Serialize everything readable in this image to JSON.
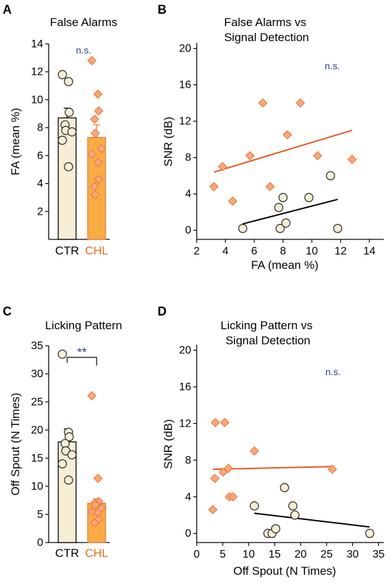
{
  "colors": {
    "ctr_fill": "#f5efd6",
    "chl_fill": "#f9ac44",
    "chl_marker_fill": "#f9a77d",
    "chl_marker_stroke": "#ef7d3a",
    "chl_text": "#ef6a1a",
    "ctr_line": "#000000",
    "chl_line": "#e8541d",
    "sig_text": "#2a3f8f"
  },
  "chart_data": [
    {
      "panel": "A",
      "type": "bar",
      "title": "False Alarms",
      "ylabel": "FA (mean %)",
      "ylim": [
        0,
        14
      ],
      "yticks": [
        2,
        4,
        6,
        8,
        10,
        12,
        14
      ],
      "categories": [
        "CTR",
        "CHL"
      ],
      "means": [
        8.7,
        7.3
      ],
      "sem": [
        0.7,
        0.9
      ],
      "points": [
        [
          11.8,
          11.3,
          9.1,
          8.2,
          7.8,
          7.7,
          7.1,
          5.2
        ],
        [
          12.8,
          10.4,
          9.2,
          8.6,
          7.6,
          6.5,
          6.1,
          5.5,
          4.3,
          3.8,
          3.2
        ]
      ],
      "significance": "n.s."
    },
    {
      "panel": "B",
      "type": "scatter",
      "title": [
        "False Alarms vs",
        "Signal Detection"
      ],
      "xlabel": "FA (mean %)",
      "ylabel": "SNR (dB)",
      "xlim": [
        2,
        15
      ],
      "ylim": [
        -1,
        20.5
      ],
      "xticks": [
        2,
        4,
        6,
        8,
        10,
        12,
        14
      ],
      "yticks": [
        0,
        4,
        8,
        12,
        16,
        20
      ],
      "series": [
        {
          "group": "CHL",
          "marker": "diamond",
          "x": [
            3.2,
            3.8,
            4.5,
            5.7,
            6.6,
            7.1,
            8.3,
            9.2,
            10.4,
            12.8
          ],
          "y": [
            4.8,
            7.0,
            3.2,
            8.2,
            14.0,
            4.8,
            10.5,
            14.0,
            8.2,
            7.8
          ],
          "fit": [
            [
              3.2,
              6.4
            ],
            [
              12.8,
              11.0
            ]
          ]
        },
        {
          "group": "CTR",
          "marker": "circle",
          "x": [
            5.2,
            7.7,
            7.8,
            8.0,
            8.2,
            9.8,
            11.3,
            11.8
          ],
          "y": [
            0.2,
            2.5,
            0.2,
            3.6,
            0.8,
            3.6,
            6.0,
            0.2
          ],
          "fit": [
            [
              5.2,
              0.7
            ],
            [
              11.8,
              3.4
            ]
          ]
        }
      ],
      "significance": "n.s."
    },
    {
      "panel": "C",
      "type": "bar",
      "title": "Licking Pattern",
      "ylabel": "Off Spout (N Times)",
      "ylim": [
        0,
        35
      ],
      "yticks": [
        0,
        5,
        10,
        15,
        20,
        25,
        30,
        35
      ],
      "categories": [
        "CTR",
        "CHL"
      ],
      "means": [
        17.9,
        7.0
      ],
      "sem": [
        2.3,
        0.8
      ],
      "points": [
        [
          33.5,
          19.6,
          18.8,
          17.6,
          16.3,
          15.6,
          14.0,
          11.1
        ],
        [
          26.1,
          11.4,
          7.3,
          7.0,
          6.7,
          6.1,
          5.5,
          5.3,
          4.1,
          3.5
        ]
      ],
      "significance": "**"
    },
    {
      "panel": "D",
      "type": "scatter",
      "title": [
        "Licking Pattern vs",
        "Signal Detection"
      ],
      "xlabel": "Off Spout (N Times)",
      "ylabel": "SNR (dB)",
      "xlim": [
        0,
        36
      ],
      "ylim": [
        -1,
        20.5
      ],
      "xticks": [
        0,
        5,
        10,
        15,
        20,
        25,
        30,
        35
      ],
      "yticks": [
        0,
        4,
        8,
        12,
        16,
        20
      ],
      "series": [
        {
          "group": "CHL",
          "marker": "diamond",
          "x": [
            3.1,
            3.5,
            3.6,
            5.1,
            5.4,
            6.1,
            6.3,
            7.0,
            11.1,
            26.1
          ],
          "y": [
            2.6,
            6.0,
            12.1,
            6.7,
            12.1,
            7.1,
            4.0,
            4.0,
            9.0,
            7.0
          ],
          "fit": [
            [
              3.1,
              7.0
            ],
            [
              26.1,
              7.3
            ]
          ]
        },
        {
          "group": "CTR",
          "marker": "circle",
          "x": [
            11.1,
            13.7,
            14.5,
            15.2,
            16.9,
            18.5,
            18.9,
            33.3
          ],
          "y": [
            3.0,
            0.0,
            0.0,
            0.5,
            5.0,
            3.0,
            2.0,
            0.0
          ],
          "fit": [
            [
              11.1,
              2.2
            ],
            [
              33.3,
              0.7
            ]
          ]
        }
      ],
      "significance": "n.s."
    }
  ]
}
